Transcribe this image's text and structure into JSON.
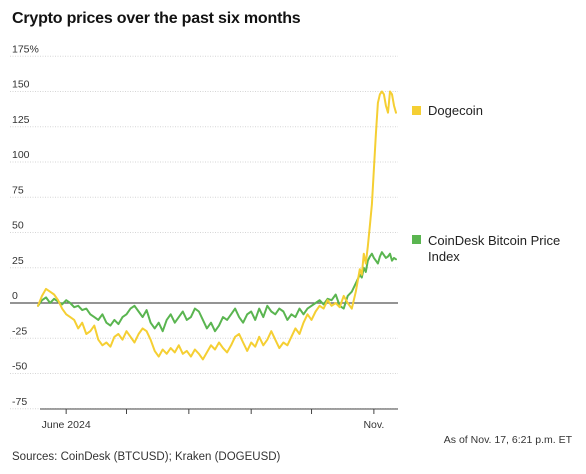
{
  "chart_data": {
    "type": "line",
    "title": "Crypto prices over the past six months",
    "y_unit": "%",
    "y_ticks": [
      175,
      150,
      125,
      100,
      75,
      50,
      25,
      0,
      -25,
      -50,
      -75
    ],
    "y_tick_labels": [
      "175%",
      "150",
      "125",
      "100",
      "75",
      "50",
      "25",
      "0",
      "-25",
      "-50",
      "-75"
    ],
    "ylim": [
      -80,
      182
    ],
    "x_range_days": [
      0,
      178
    ],
    "x_tick_labels": [
      {
        "label": "June 2024",
        "day": 14
      },
      {
        "label": "Nov.",
        "day": 167
      }
    ],
    "x_minor_tick_days": [
      14,
      44,
      75,
      106,
      136,
      167
    ],
    "grid": true,
    "legend": "right, next to line ends",
    "series": [
      {
        "name": "Dogecoin",
        "color": "#f5cf33",
        "x": [
          0,
          2,
          4,
          6,
          8,
          10,
          12,
          14,
          16,
          18,
          20,
          22,
          24,
          26,
          28,
          30,
          32,
          34,
          36,
          38,
          40,
          42,
          44,
          46,
          48,
          50,
          52,
          54,
          56,
          58,
          60,
          62,
          64,
          66,
          68,
          70,
          72,
          74,
          76,
          78,
          80,
          82,
          84,
          86,
          88,
          90,
          92,
          94,
          96,
          98,
          100,
          102,
          104,
          106,
          108,
          110,
          112,
          114,
          116,
          118,
          120,
          122,
          124,
          126,
          128,
          130,
          132,
          134,
          136,
          138,
          140,
          142,
          144,
          146,
          148,
          150,
          152,
          154,
          156,
          158,
          160,
          161,
          162,
          163,
          164,
          165,
          166,
          167,
          168,
          169,
          170,
          171,
          172,
          173,
          174,
          175,
          176,
          177,
          178
        ],
        "values": [
          -2,
          5,
          10,
          8,
          6,
          2,
          -4,
          -8,
          -10,
          -12,
          -18,
          -14,
          -22,
          -20,
          -16,
          -26,
          -30,
          -28,
          -31,
          -24,
          -22,
          -26,
          -20,
          -24,
          -28,
          -22,
          -18,
          -20,
          -26,
          -34,
          -38,
          -33,
          -36,
          -32,
          -35,
          -30,
          -36,
          -34,
          -38,
          -33,
          -36,
          -40,
          -35,
          -30,
          -33,
          -28,
          -32,
          -35,
          -30,
          -24,
          -22,
          -28,
          -34,
          -28,
          -31,
          -24,
          -30,
          -26,
          -20,
          -26,
          -32,
          -28,
          -30,
          -24,
          -18,
          -22,
          -14,
          -8,
          -12,
          -6,
          -2,
          -4,
          2,
          -2,
          0,
          -3,
          5,
          0,
          -4,
          8,
          24,
          20,
          35,
          28,
          40,
          55,
          70,
          95,
          120,
          142,
          148,
          150,
          148,
          140,
          135,
          150,
          148,
          140,
          135
        ]
      },
      {
        "name": "CoinDesk Bitcoin Price Index",
        "color": "#5ab550",
        "x": [
          0,
          2,
          4,
          6,
          8,
          10,
          12,
          14,
          16,
          18,
          20,
          22,
          24,
          26,
          28,
          30,
          32,
          34,
          36,
          38,
          40,
          42,
          44,
          46,
          48,
          50,
          52,
          54,
          56,
          58,
          60,
          62,
          64,
          66,
          68,
          70,
          72,
          74,
          76,
          78,
          80,
          82,
          84,
          86,
          88,
          90,
          92,
          94,
          96,
          98,
          100,
          102,
          104,
          106,
          108,
          110,
          112,
          114,
          116,
          118,
          120,
          122,
          124,
          126,
          128,
          130,
          132,
          134,
          136,
          138,
          140,
          142,
          144,
          146,
          148,
          150,
          152,
          154,
          156,
          158,
          160,
          161,
          162,
          163,
          164,
          165,
          166,
          167,
          168,
          169,
          170,
          171,
          172,
          173,
          174,
          175,
          176,
          177,
          178
        ],
        "values": [
          -2,
          2,
          4,
          0,
          3,
          1,
          -1,
          2,
          0,
          -3,
          -2,
          -5,
          -4,
          -8,
          -10,
          -12,
          -8,
          -14,
          -16,
          -12,
          -15,
          -10,
          -8,
          -4,
          -2,
          -6,
          -10,
          -5,
          -14,
          -18,
          -14,
          -20,
          -12,
          -8,
          -14,
          -10,
          -6,
          -12,
          -10,
          -4,
          -6,
          -12,
          -18,
          -14,
          -20,
          -16,
          -10,
          -12,
          -8,
          -4,
          -10,
          -14,
          -8,
          -6,
          -12,
          -4,
          -10,
          -2,
          -6,
          -8,
          -4,
          -6,
          -12,
          -8,
          -10,
          -4,
          -8,
          -4,
          -2,
          0,
          2,
          -1,
          3,
          2,
          6,
          -2,
          -4,
          5,
          8,
          14,
          20,
          18,
          25,
          22,
          30,
          33,
          35,
          32,
          30,
          28,
          33,
          36,
          34,
          32,
          33,
          35,
          30,
          32,
          31
        ]
      }
    ],
    "annotations": [
      "As of Nov. 17, 6:21 p.m. ET"
    ],
    "source": "Sources: CoinDesk (BTCUSD); Kraken (DOGEUSD)"
  }
}
